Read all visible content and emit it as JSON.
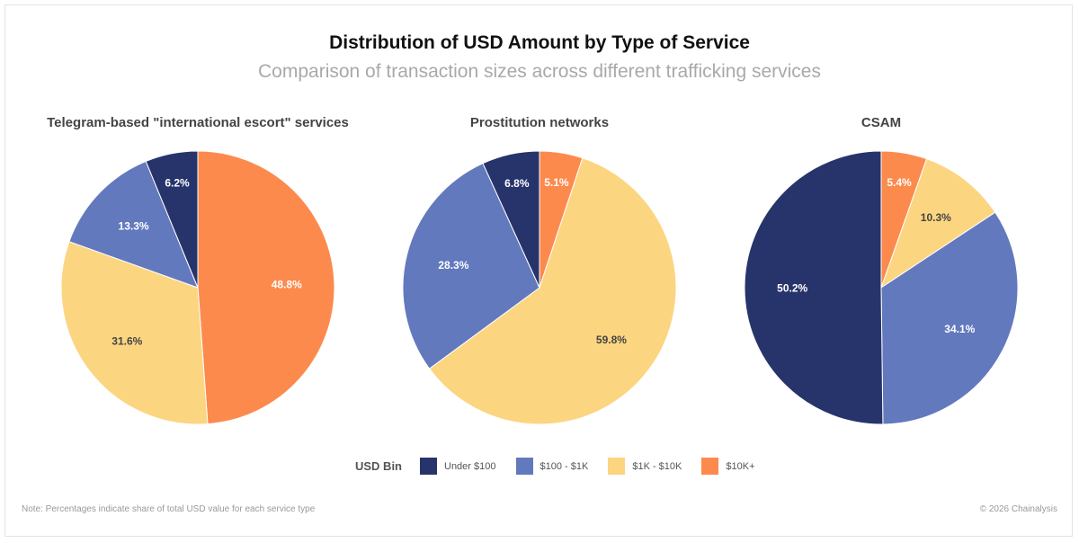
{
  "title": "Distribution of USD Amount by Type of Service",
  "subtitle": "Comparison of transaction sizes across different trafficking services",
  "legend": {
    "title": "USD Bin",
    "items": [
      {
        "label": "Under $100",
        "color": "#27346b"
      },
      {
        "label": "$100 - $1K",
        "color": "#6279bd"
      },
      {
        "label": "$1K - $10K",
        "color": "#fcd581"
      },
      {
        "label": "$10K+",
        "color": "#fc8a4d"
      }
    ]
  },
  "chart_data": [
    {
      "type": "pie",
      "title": "Telegram-based \"international escort\" services",
      "categories": [
        "$10K+",
        "$1K - $10K",
        "$100 - $1K",
        "Under $100"
      ],
      "values": [
        48.8,
        31.6,
        13.3,
        6.2
      ],
      "labels": [
        "48.8%",
        "31.6%",
        "13.3%",
        "6.2%"
      ]
    },
    {
      "type": "pie",
      "title": "Prostitution networks",
      "categories": [
        "$10K+",
        "$1K - $10K",
        "$100 - $1K",
        "Under $100"
      ],
      "values": [
        5.1,
        59.8,
        28.3,
        6.8
      ],
      "labels": [
        "5.1%",
        "59.8%",
        "28.3%",
        "6.8%"
      ]
    },
    {
      "type": "pie",
      "title": "CSAM",
      "categories": [
        "$10K+",
        "$1K - $10K",
        "$100 - $1K",
        "Under $100"
      ],
      "values": [
        5.4,
        10.3,
        34.1,
        50.2
      ],
      "labels": [
        "5.4%",
        "10.3%",
        "34.1%",
        "50.2%"
      ]
    }
  ],
  "note": "Note: Percentages indicate share of total USD value for each service type",
  "copyright": "© 2026 Chainalysis"
}
